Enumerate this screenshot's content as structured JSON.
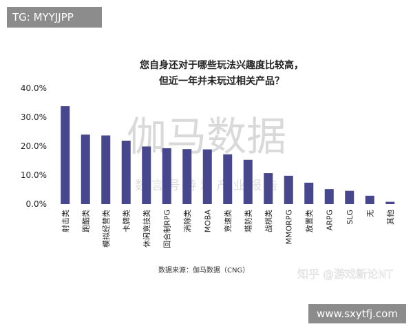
{
  "watermark_tag": "TG: MYYJJPP",
  "watermark_bottom": "www.sxytfj.com",
  "watermark_center": "伽马数据",
  "watermark_center_sub": "数 言 号 游 戏 产 业 报 告",
  "watermark_corner": "知乎 @游戏新论NT",
  "chart_data": {
    "type": "bar",
    "title": [
      "您自身还对于哪些玩法兴趣度比较高，",
      "但近一年并未玩过相关产品？"
    ],
    "source": "数据来源：伽马数据（CNG）",
    "categories": [
      "射击类",
      "跑酷类",
      "模拟经营类",
      "卡牌类",
      "休闲竞技类",
      "回合制RPG",
      "消除类",
      "MOBA",
      "竞速类",
      "塔防类",
      "战棋类",
      "MMORPG",
      "放置类",
      "ARPG",
      "SLG",
      "无",
      "其他"
    ],
    "values": [
      33.8,
      24.0,
      23.7,
      21.9,
      19.9,
      19.3,
      19.0,
      18.9,
      17.2,
      15.3,
      10.7,
      9.8,
      7.4,
      5.2,
      4.6,
      2.9,
      0.8
    ],
    "yticks": [
      "40.0%",
      "30.0%",
      "20.0%",
      "10.0%",
      "0.0%"
    ],
    "ylim": [
      0,
      40
    ],
    "xlabel": "",
    "ylabel": "",
    "bar_color": "#46478c",
    "grid": false,
    "legend": "none"
  }
}
